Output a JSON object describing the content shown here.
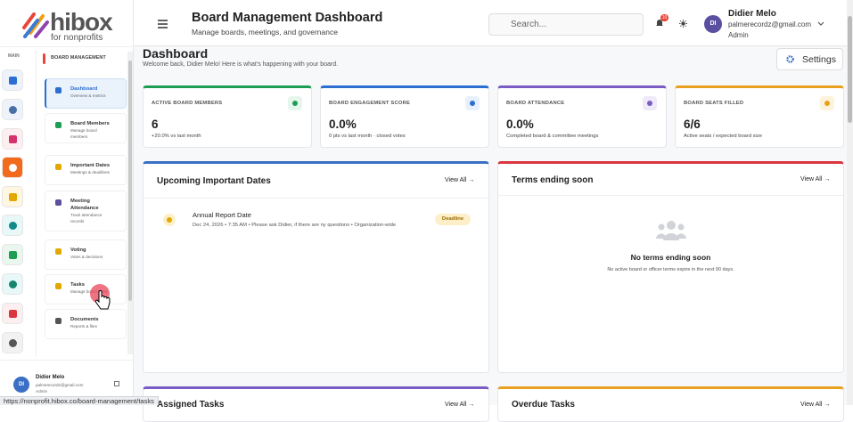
{
  "brand": {
    "name": "hibox",
    "tagline": "for nonprofits"
  },
  "rail": {
    "label": "MAIN"
  },
  "menu": {
    "heading": "BOARD MANAGEMENT",
    "items": [
      {
        "title": "Dashboard",
        "subtitle": "Overview & metrics"
      },
      {
        "title": "Board Members",
        "subtitle": "Manage board members"
      },
      {
        "title": "Important Dates",
        "subtitle": "Meetings & deadlines"
      },
      {
        "title": "Meeting Attendance",
        "subtitle": "Track attendance records"
      },
      {
        "title": "Voting",
        "subtitle": "Votes & decisions"
      },
      {
        "title": "Tasks",
        "subtitle": "Manage board tasks"
      },
      {
        "title": "Documents",
        "subtitle": "Reports & files"
      }
    ]
  },
  "sidebar_user": {
    "initials": "DI",
    "name": "Didier Melo",
    "email": "palmerecordz@gmail.com",
    "role": "Admin"
  },
  "status_url": "https://nonprofit.hibox.co/board-management/tasks",
  "header": {
    "title": "Board Management Dashboard",
    "subtitle": "Manage boards, meetings, and governance",
    "search_placeholder": "Search...",
    "notification_count": "10"
  },
  "user": {
    "initials": "DI",
    "name": "Didier Melo",
    "email": "palmerecordz@gmail.com",
    "role": "Admin"
  },
  "page": {
    "title": "Dashboard",
    "welcome": "Welcome back, Didier Melo! Here is what's happening with your board.",
    "settings": "Settings"
  },
  "stats": [
    {
      "label": "ACTIVE BOARD MEMBERS",
      "value": "6",
      "note": "+20.0% vs last month"
    },
    {
      "label": "BOARD ENGAGEMENT SCORE",
      "value": "0.0%",
      "note": "0 pts vs last month · closed votes"
    },
    {
      "label": "BOARD ATTENDANCE",
      "value": "0.0%",
      "note": "Completed board & committee meetings"
    },
    {
      "label": "BOARD SEATS FILLED",
      "value": "6/6",
      "note": "Active seats / expected board size"
    }
  ],
  "dates": {
    "title": "Upcoming Important Dates",
    "view_all": "View All →",
    "items": [
      {
        "title": "Annual Report Date",
        "meta": "Dec 24, 2026 • 7:35 AM • Please ask Didier, if there are ny questions • Organization-wide",
        "tag": "Deadline"
      }
    ]
  },
  "terms": {
    "title": "Terms ending soon",
    "view_all": "View All →",
    "empty_title": "No terms ending soon",
    "empty_text": "No active board or officer terms expire in the next 90 days."
  },
  "lower": [
    {
      "title": "Assigned Tasks",
      "view_all": "View All →"
    },
    {
      "title": "Overdue Tasks",
      "view_all": "View All →"
    }
  ]
}
